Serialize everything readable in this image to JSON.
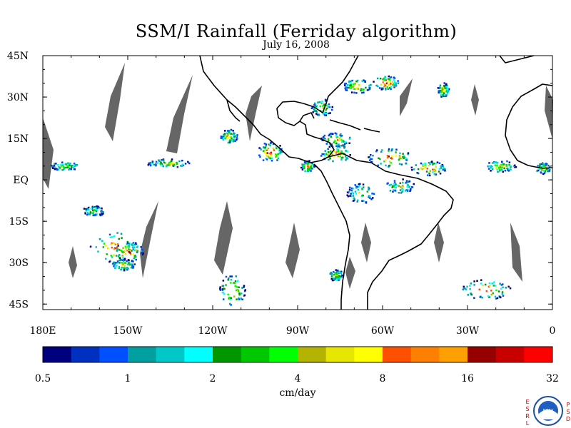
{
  "title": "SSM/I Rainfall (Ferriday algorithm)",
  "subtitle": "July 16, 2008",
  "map": {
    "lon_range": [
      -180,
      0
    ],
    "lat_range": [
      -47,
      45
    ],
    "lat_ticks": [
      {
        "value": 45,
        "label": "45N"
      },
      {
        "value": 30,
        "label": "30N"
      },
      {
        "value": 15,
        "label": "15N"
      },
      {
        "value": 0,
        "label": "EQ"
      },
      {
        "value": -15,
        "label": "15S"
      },
      {
        "value": -30,
        "label": "30S"
      },
      {
        "value": -45,
        "label": "45S"
      }
    ],
    "lon_ticks": [
      {
        "value": -180,
        "label": "180E"
      },
      {
        "value": -150,
        "label": "150W"
      },
      {
        "value": -120,
        "label": "120W"
      },
      {
        "value": -90,
        "label": "90W"
      },
      {
        "value": -60,
        "label": "60W"
      },
      {
        "value": -30,
        "label": "30W"
      },
      {
        "value": 0,
        "label": "0"
      }
    ],
    "colors": {
      "land_outline": "#000000",
      "no_data": "#666666"
    }
  },
  "colorbar": {
    "units": "cm/day",
    "tick_labels": [
      "0.5",
      "1",
      "2",
      "4",
      "8",
      "16",
      "32"
    ],
    "colors": [
      "#00007f",
      "#0030c0",
      "#0050ff",
      "#00a0a0",
      "#00c8c8",
      "#00ffff",
      "#009600",
      "#00c800",
      "#00ff00",
      "#b4b400",
      "#e6e600",
      "#ffff00",
      "#ff5000",
      "#ff8000",
      "#ffa000",
      "#960000",
      "#c80000",
      "#ff0000"
    ]
  },
  "logo": {
    "left_letters": [
      "E",
      "S",
      "R",
      "L"
    ],
    "right_letters": [
      "P",
      "S",
      "D"
    ],
    "center": "NOAA"
  }
}
